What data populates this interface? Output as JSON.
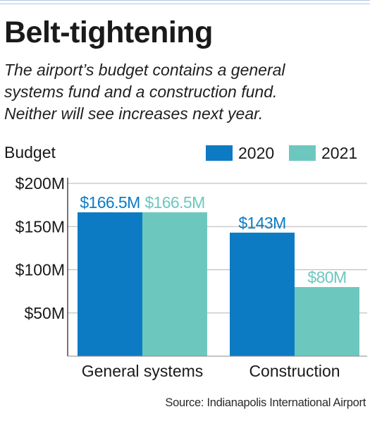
{
  "header": {
    "title": "Belt-tightening",
    "subtitle_lines": [
      "The airport’s budget contains a general",
      "systems fund and a construction fund.",
      "Neither will see increases next year."
    ]
  },
  "chart_data": {
    "type": "bar",
    "ylabel": "Budget",
    "categories": [
      "General systems",
      "Construction"
    ],
    "series": [
      {
        "name": "2020",
        "values": [
          166.5,
          143
        ],
        "labels": [
          "$166.5M",
          "$143M"
        ],
        "color": "#0d7bc4"
      },
      {
        "name": "2021",
        "values": [
          166.5,
          80
        ],
        "labels": [
          "$166.5M",
          "$80M"
        ],
        "color": "#6cc8bf"
      }
    ],
    "ylim": [
      0,
      200
    ],
    "yticks": [
      50,
      100,
      150,
      200
    ],
    "ytick_labels": [
      "$50M",
      "$100M",
      "$150M",
      "$200M"
    ],
    "grid": true,
    "legend": "top-right"
  },
  "footer": {
    "source": "Source: Indianapolis International Airport"
  }
}
